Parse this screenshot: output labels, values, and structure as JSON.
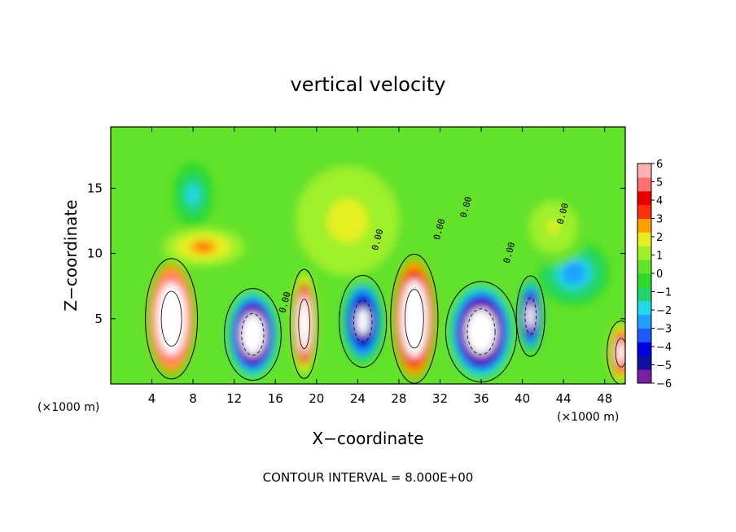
{
  "chart_data": {
    "type": "heatmap",
    "title": "vertical velocity",
    "xlabel": "X−coordinate",
    "ylabel": "Z−coordinate",
    "x_unit_label_left": "(×1000 m)",
    "x_unit_label_right": "(×1000 m)",
    "footer": "CONTOUR INTERVAL = 8.000E+00",
    "xlim": [
      0,
      50
    ],
    "ylim": [
      0,
      19.7
    ],
    "x_ticks": [
      "4",
      "8",
      "12",
      "16",
      "20",
      "24",
      "28",
      "32",
      "36",
      "40",
      "44",
      "48"
    ],
    "y_ticks": [
      "5",
      "10",
      "15"
    ],
    "colorbar": {
      "min": -6,
      "max": 6,
      "labels": [
        "6",
        "5",
        "4",
        "3",
        "2",
        "1",
        "0",
        "−1",
        "−2",
        "−3",
        "−4",
        "−5",
        "−6"
      ],
      "colors": [
        "#7a1fa2",
        "#1010a0",
        "#0000e0",
        "#1e5aff",
        "#1ea0ff",
        "#20d8e8",
        "#22d46a",
        "#2fd92a",
        "#62e22a",
        "#9ef02a",
        "#e6f020",
        "#ffa000",
        "#ff3010",
        "#e80000",
        "#ff7070",
        "#ffb0b0"
      ]
    },
    "contour_labels": [
      "0.00",
      "0.00",
      "0.00",
      "0.00",
      "0.00",
      "0.00"
    ],
    "background_value": 0.3,
    "cells": [
      {
        "x": 5.9,
        "z": 5.0,
        "rx": 2.2,
        "rz": 4.2,
        "value": 14
      },
      {
        "x": 18.8,
        "z": 4.6,
        "rx": 1.2,
        "rz": 3.8,
        "value": 11
      },
      {
        "x": 29.5,
        "z": 5.0,
        "rx": 2.0,
        "rz": 4.5,
        "value": 12
      },
      {
        "x": 49.6,
        "z": 2.4,
        "rx": 1.2,
        "rz": 2.2,
        "value": 8
      },
      {
        "x": 13.8,
        "z": 3.8,
        "rx": 2.4,
        "rz": 3.2,
        "value": -12
      },
      {
        "x": 24.5,
        "z": 4.8,
        "rx": 2.0,
        "rz": 3.2,
        "value": -8
      },
      {
        "x": 36.0,
        "z": 4.0,
        "rx": 3.0,
        "rz": 3.5,
        "value": -12
      },
      {
        "x": 40.8,
        "z": 5.2,
        "rx": 1.2,
        "rz": 2.8,
        "value": -9
      },
      {
        "x": 45.0,
        "z": 8.5,
        "rx": 3.5,
        "rz": 2.5,
        "value": -3
      },
      {
        "x": 8.0,
        "z": 14.5,
        "rx": 2.0,
        "rz": 2.5,
        "value": -2
      },
      {
        "x": 23.0,
        "z": 12.5,
        "rx": 6.0,
        "rz": 5.0,
        "value": 2
      },
      {
        "x": 43.0,
        "z": 12.0,
        "rx": 3.5,
        "rz": 3.0,
        "value": 1.5
      },
      {
        "x": 9.0,
        "z": 10.5,
        "rx": 4.0,
        "rz": 1.5,
        "value": 3
      }
    ]
  }
}
